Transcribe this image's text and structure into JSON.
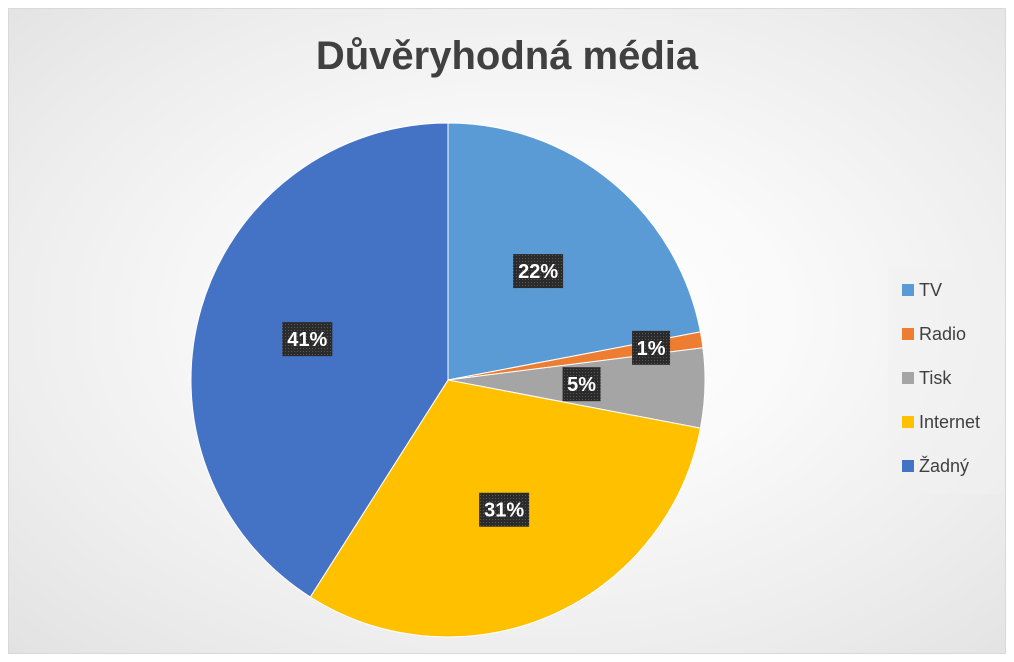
{
  "chart_data": {
    "type": "pie",
    "title": "Důvěryhodná média",
    "categories": [
      "TV",
      "Radio",
      "Tisk",
      "Internet",
      "Žadný"
    ],
    "values": [
      22,
      1,
      5,
      31,
      41
    ],
    "data_labels": [
      "22%",
      "1%",
      "5%",
      "31%",
      "41%"
    ],
    "colors": [
      "#5B9BD5",
      "#ED7D31",
      "#A5A5A5",
      "#FFC000",
      "#4472C4"
    ],
    "legend_position": "right"
  }
}
